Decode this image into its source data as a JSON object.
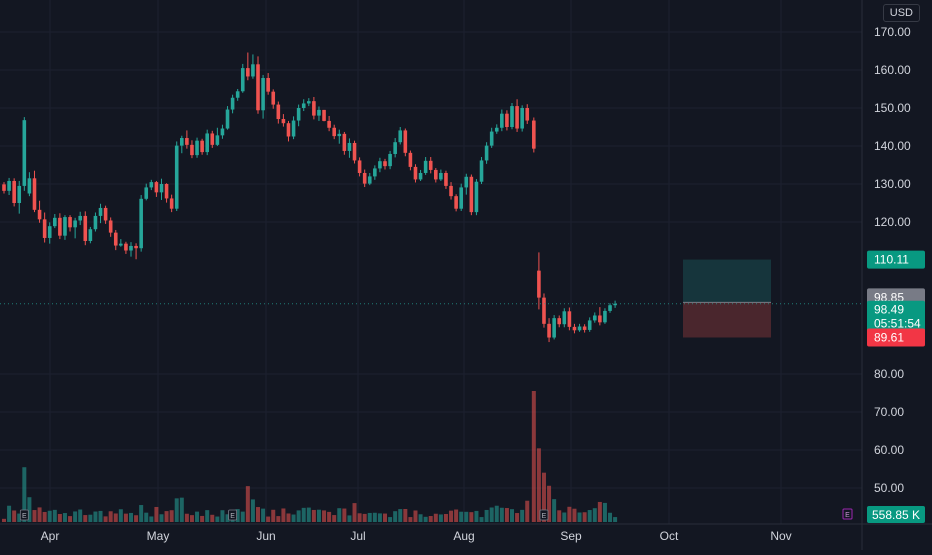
{
  "header": {
    "currency": "USD"
  },
  "chart_data": {
    "type": "candlestick",
    "price_axis": {
      "ticks": [
        "170.00",
        "160.00",
        "150.00",
        "140.00",
        "130.00",
        "120.00",
        "80.00",
        "70.00",
        "60.00",
        "50.00"
      ]
    },
    "time_axis": {
      "labels": [
        "Apr",
        "May",
        "Jun",
        "Jul",
        "Aug",
        "Sep",
        "Oct",
        "Nov"
      ]
    },
    "price_labels": {
      "target": "110.11",
      "entry": "98.85",
      "last_price": "98.49",
      "countdown": "05:51:54",
      "stop": "89.61"
    },
    "volume_label": "558.85 K",
    "earnings_marker": "E",
    "position_box": {
      "entry": 98.85,
      "target": 110.11,
      "stop": 89.61
    },
    "ylim": [
      44.0,
      177.5
    ],
    "candles": [
      [
        129.9,
        130.5,
        127.5,
        128.2
      ],
      [
        128.2,
        131.6,
        127.1,
        130.8
      ],
      [
        130.8,
        131.5,
        124.1,
        125.0
      ],
      [
        125.0,
        130.8,
        122.2,
        129.5
      ],
      [
        129.5,
        147.6,
        128.2,
        146.8
      ],
      [
        127.5,
        133.1,
        126.8,
        131.5
      ],
      [
        131.5,
        133.5,
        122.6,
        123.2
      ],
      [
        123.2,
        125.6,
        119.8,
        120.7
      ],
      [
        120.7,
        122.5,
        114.6,
        115.8
      ],
      [
        115.8,
        119.9,
        114.3,
        118.9
      ],
      [
        118.9,
        122.1,
        118.4,
        121.1
      ],
      [
        121.1,
        122.3,
        115.5,
        116.4
      ],
      [
        116.4,
        121.8,
        115.3,
        121.3
      ],
      [
        121.3,
        121.8,
        117.5,
        118.6
      ],
      [
        118.6,
        121.1,
        115.7,
        120.4
      ],
      [
        120.4,
        122.7,
        119.2,
        121.6
      ],
      [
        121.6,
        122.8,
        113.9,
        115.0
      ],
      [
        115.0,
        118.7,
        114.4,
        118.1
      ],
      [
        118.1,
        122.5,
        117.5,
        121.6
      ],
      [
        121.6,
        124.8,
        119.7,
        123.7
      ],
      [
        123.7,
        124.3,
        119.5,
        120.4
      ],
      [
        120.4,
        121.2,
        116.1,
        117.2
      ],
      [
        117.2,
        117.9,
        112.6,
        113.8
      ],
      [
        113.8,
        115.5,
        113.5,
        114.3
      ],
      [
        114.3,
        114.8,
        111.6,
        112.5
      ],
      [
        112.5,
        114.7,
        110.9,
        113.7
      ],
      [
        113.7,
        114.4,
        110.2,
        113.1
      ],
      [
        113.1,
        127.1,
        112.2,
        126.1
      ],
      [
        126.1,
        130.1,
        125.7,
        129.1
      ],
      [
        129.1,
        131.1,
        128.4,
        130.5
      ],
      [
        130.5,
        130.8,
        126.6,
        127.8
      ],
      [
        127.8,
        131.4,
        125.8,
        130.0
      ],
      [
        130.0,
        130.2,
        125.1,
        126.2
      ],
      [
        126.2,
        127.2,
        122.6,
        123.5
      ],
      [
        123.5,
        141.2,
        122.9,
        140.1
      ],
      [
        140.1,
        142.7,
        138.1,
        142.1
      ],
      [
        142.1,
        144.1,
        139.3,
        140.3
      ],
      [
        140.3,
        141.5,
        136.8,
        137.6
      ],
      [
        137.6,
        142.2,
        136.9,
        141.4
      ],
      [
        141.4,
        141.9,
        137.7,
        138.4
      ],
      [
        138.4,
        144.3,
        137.6,
        143.3
      ],
      [
        143.3,
        144.0,
        139.5,
        140.3
      ],
      [
        140.3,
        144.8,
        140.0,
        142.8
      ],
      [
        142.8,
        145.6,
        141.9,
        144.6
      ],
      [
        144.6,
        150.5,
        144.3,
        149.6
      ],
      [
        149.6,
        153.5,
        148.6,
        152.7
      ],
      [
        152.7,
        155.0,
        151.9,
        154.4
      ],
      [
        154.4,
        161.6,
        154.0,
        160.5
      ],
      [
        160.5,
        164.6,
        157.3,
        158.3
      ],
      [
        158.3,
        164.1,
        157.7,
        161.5
      ],
      [
        161.5,
        163.6,
        148.5,
        149.4
      ],
      [
        149.4,
        158.7,
        147.2,
        157.9
      ],
      [
        157.9,
        159.2,
        153.5,
        154.3
      ],
      [
        154.3,
        154.9,
        149.8,
        150.9
      ],
      [
        150.9,
        151.7,
        145.9,
        147.1
      ],
      [
        147.1,
        148.4,
        145.1,
        146.0
      ],
      [
        146.0,
        146.6,
        141.2,
        142.5
      ],
      [
        142.5,
        147.8,
        141.8,
        146.7
      ],
      [
        146.7,
        150.9,
        145.2,
        150.0
      ],
      [
        150.0,
        152.3,
        149.2,
        151.2
      ],
      [
        151.2,
        152.6,
        150.5,
        151.8
      ],
      [
        151.8,
        152.9,
        147.0,
        148.0
      ],
      [
        148.0,
        150.4,
        146.6,
        149.5
      ],
      [
        149.5,
        149.5,
        146.5,
        146.6
      ],
      [
        146.6,
        147.9,
        143.9,
        144.8
      ],
      [
        144.8,
        145.6,
        141.8,
        142.6
      ],
      [
        142.6,
        144.3,
        140.6,
        143.2
      ],
      [
        143.2,
        143.7,
        137.7,
        138.7
      ],
      [
        138.7,
        142.0,
        136.9,
        140.8
      ],
      [
        140.8,
        141.4,
        135.4,
        136.2
      ],
      [
        136.2,
        137.0,
        132.0,
        132.9
      ],
      [
        132.9,
        133.8,
        129.2,
        130.1
      ],
      [
        130.1,
        132.9,
        129.7,
        132.0
      ],
      [
        132.0,
        134.9,
        131.1,
        134.1
      ],
      [
        134.1,
        136.9,
        133.1,
        136.0
      ],
      [
        136.0,
        136.6,
        133.8,
        134.7
      ],
      [
        134.7,
        138.7,
        133.9,
        137.9
      ],
      [
        137.9,
        142.1,
        137.0,
        141.0
      ],
      [
        141.0,
        145.0,
        140.4,
        144.1
      ],
      [
        144.1,
        144.6,
        137.3,
        138.2
      ],
      [
        138.2,
        138.8,
        133.6,
        134.5
      ],
      [
        134.5,
        135.2,
        130.4,
        131.2
      ],
      [
        131.2,
        133.7,
        130.8,
        132.9
      ],
      [
        132.9,
        137.1,
        132.4,
        136.1
      ],
      [
        136.1,
        137.1,
        132.8,
        133.7
      ],
      [
        133.7,
        134.2,
        130.4,
        131.2
      ],
      [
        131.2,
        133.8,
        130.8,
        132.9
      ],
      [
        132.9,
        133.5,
        128.7,
        129.5
      ],
      [
        129.5,
        130.5,
        125.9,
        126.8
      ],
      [
        126.8,
        127.3,
        122.8,
        123.5
      ],
      [
        123.5,
        130.1,
        122.9,
        129.1
      ],
      [
        129.1,
        132.7,
        127.2,
        131.9
      ],
      [
        131.9,
        132.5,
        121.8,
        122.6
      ],
      [
        122.6,
        131.3,
        121.8,
        130.6
      ],
      [
        130.6,
        137.1,
        130.0,
        136.2
      ],
      [
        136.2,
        141.0,
        135.3,
        140.1
      ],
      [
        140.1,
        144.8,
        139.5,
        143.8
      ],
      [
        143.8,
        145.7,
        143.2,
        144.8
      ],
      [
        144.8,
        149.6,
        143.9,
        148.5
      ],
      [
        148.5,
        149.4,
        144.1,
        145.0
      ],
      [
        145.0,
        151.3,
        144.4,
        150.5
      ],
      [
        150.5,
        152.3,
        143.7,
        144.6
      ],
      [
        144.6,
        150.7,
        143.8,
        150.0
      ],
      [
        150.0,
        151.0,
        145.8,
        146.7
      ],
      [
        146.7,
        147.5,
        138.3,
        139.3
      ],
      [
        107.2,
        112.0,
        97.0,
        100.1
      ],
      [
        100.1,
        101.2,
        92.2,
        93.2
      ],
      [
        93.2,
        94.7,
        88.4,
        89.6
      ],
      [
        89.6,
        95.5,
        89.1,
        94.7
      ],
      [
        94.7,
        95.4,
        92.3,
        93.1
      ],
      [
        93.1,
        97.3,
        92.3,
        96.5
      ],
      [
        96.5,
        97.5,
        91.5,
        92.4
      ],
      [
        92.4,
        93.2,
        90.7,
        91.5
      ],
      [
        91.5,
        93.2,
        91.1,
        92.5
      ],
      [
        92.5,
        93.1,
        90.9,
        91.6
      ],
      [
        91.6,
        94.9,
        91.1,
        94.1
      ],
      [
        94.1,
        96.2,
        93.5,
        95.4
      ],
      [
        95.4,
        97.6,
        92.8,
        93.6
      ],
      [
        93.6,
        97.3,
        93.2,
        96.6
      ],
      [
        96.6,
        98.6,
        96.1,
        98.1
      ],
      [
        98.1,
        99.3,
        97.4,
        98.49
      ]
    ],
    "volumes": [
      0.36,
      1.85,
      1.31,
      0.96,
      6.23,
      2.82,
      1.36,
      1.66,
      1.14,
      1.28,
      1.38,
      0.91,
      1.02,
      0.67,
      1.2,
      1.42,
      0.79,
      0.83,
      1.19,
      1.26,
      0.64,
      1.22,
      0.97,
      1.45,
      0.95,
      1.03,
      0.77,
      1.93,
      1.06,
      0.63,
      1.71,
      0.88,
      1.24,
      1.34,
      2.69,
      2.77,
      0.94,
      0.78,
      1.18,
      0.69,
      1.35,
      0.82,
      0.62,
      1.34,
      0.88,
      1.1,
      1.47,
      1.18,
      4.08,
      2.57,
      1.7,
      1.52,
      0.62,
      1.39,
      0.67,
      1.54,
      0.97,
      0.85,
      1.32,
      1.61,
      1.64,
      1.37,
      1.4,
      1.32,
      1.15,
      0.79,
      1.57,
      1.53,
      0.75,
      2.15,
      0.99,
      0.92,
      1.03,
      1.05,
      0.98,
      0.96,
      0.56,
      1.23,
      1.47,
      1.48,
      0.56,
      1.31,
      0.88,
      0.59,
      0.68,
      0.94,
      0.86,
      0.91,
      1.29,
      1.42,
      1.17,
      1.16,
      1.12,
      1.26,
      0.56,
      1.37,
      1.65,
      1.85,
      1.62,
      1.59,
      1.46,
      1.02,
      1.38,
      2.42,
      14.9,
      8.38,
      5.61,
      4.12,
      2.6,
      1.33,
      1.08,
      1.73,
      1.51,
      1.08,
      1.11,
      1.36,
      1.57,
      2.28,
      2.17,
      1.05,
      0.56
    ]
  }
}
